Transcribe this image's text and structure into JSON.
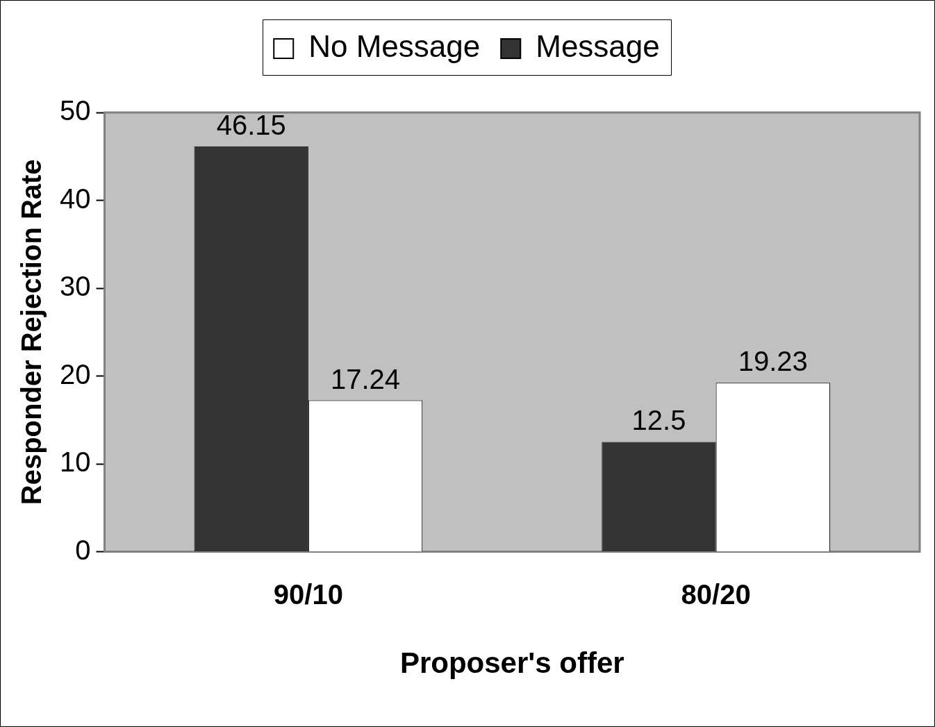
{
  "chart_data": {
    "type": "bar",
    "xlabel": "Proposer's offer",
    "ylabel": "Responder Rejection Rate",
    "categories": [
      "90/10",
      "80/20"
    ],
    "series": [
      {
        "name": "Message",
        "color": "#333333",
        "values": [
          46.15,
          12.5
        ]
      },
      {
        "name": "No Message",
        "color": "#ffffff",
        "values": [
          17.24,
          19.23
        ]
      }
    ],
    "ylim": [
      0,
      50
    ],
    "yticks": [
      0,
      10,
      20,
      30,
      40,
      50
    ],
    "grid": false,
    "legend": "top",
    "data_labels": true
  }
}
